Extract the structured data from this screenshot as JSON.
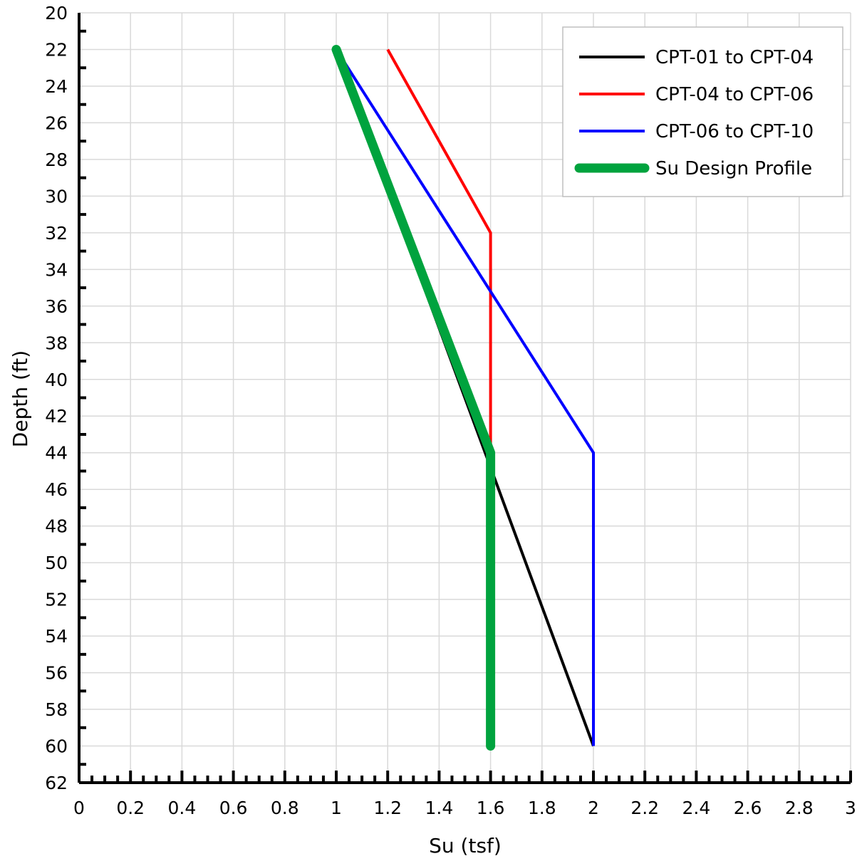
{
  "chart_data": {
    "type": "line",
    "title": "",
    "xlabel": "Su (tsf)",
    "ylabel": "Depth (ft)",
    "xlim": [
      0,
      3
    ],
    "ylim": [
      20,
      62
    ],
    "y_inverted": true,
    "x_major_step": 0.2,
    "x_minor_step": 0.05,
    "y_major_step": 2,
    "y_minor_step": 1,
    "x_tick_labels": [
      "0",
      "0.2",
      "0.4",
      "0.6",
      "0.8",
      "1",
      "1.2",
      "1.4",
      "1.6",
      "1.8",
      "2",
      "2.2",
      "2.4",
      "2.6",
      "2.8",
      "3"
    ],
    "y_tick_labels": [
      "20",
      "22",
      "24",
      "26",
      "28",
      "30",
      "32",
      "34",
      "36",
      "38",
      "40",
      "42",
      "44",
      "46",
      "48",
      "50",
      "52",
      "54",
      "56",
      "58",
      "60",
      "62"
    ],
    "grid": true,
    "legend_position": "top-right",
    "series": [
      {
        "name": "CPT-01 to CPT-04",
        "color": "#000000",
        "line_width": 4,
        "x": [
          1.0,
          2.0
        ],
        "y": [
          22,
          60
        ]
      },
      {
        "name": "CPT-04 to CPT-06",
        "color": "#ff0000",
        "line_width": 4,
        "x": [
          1.2,
          1.6,
          1.6
        ],
        "y": [
          22,
          32,
          44
        ]
      },
      {
        "name": "CPT-06 to CPT-10",
        "color": "#0000ff",
        "line_width": 4,
        "x": [
          1.0,
          2.0,
          2.0
        ],
        "y": [
          22,
          44,
          60
        ]
      },
      {
        "name": "Su Design Profile",
        "color": "#00a33e",
        "line_width": 13,
        "x": [
          1.0,
          1.6,
          1.6
        ],
        "y": [
          22,
          44,
          60
        ]
      }
    ]
  }
}
